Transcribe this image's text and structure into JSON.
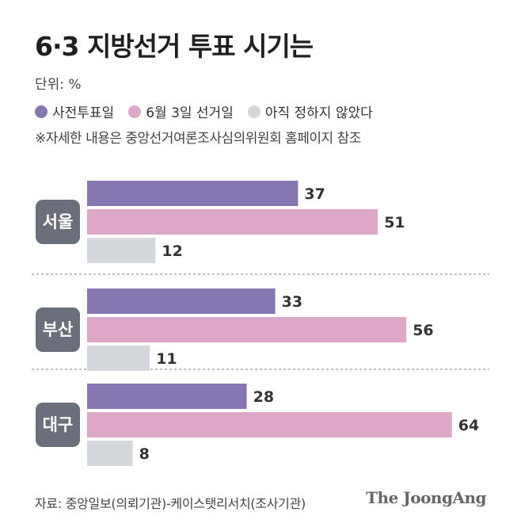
{
  "title": "6·3 지방선거 투표 시기는",
  "unit": "단위: %",
  "note": "※자세한 내용은 중앙선거여론조사심의위원회 홈페이지 참조",
  "source": "자료: 중앙일보(의뢰기관)-케이스탯리서치(조사기관)",
  "brand": "The JoongAng",
  "colors": {
    "series_0": "#8677b3",
    "series_1": "#dda8c8",
    "series_2": "#d4d8dd",
    "region_label_bg": "#6b6e7b",
    "value_text": "#333333"
  },
  "chart_data": {
    "type": "bar",
    "orientation": "horizontal",
    "categories": [
      "서울",
      "부산",
      "대구"
    ],
    "series": [
      {
        "name": "사전투표일",
        "values": [
          37,
          33,
          28
        ]
      },
      {
        "name": "6월 3일 선거일",
        "values": [
          51,
          56,
          64
        ]
      },
      {
        "name": "아직 정하지 않았다",
        "values": [
          12,
          11,
          8
        ]
      }
    ],
    "legend_position": "top-left",
    "grid": false
  }
}
